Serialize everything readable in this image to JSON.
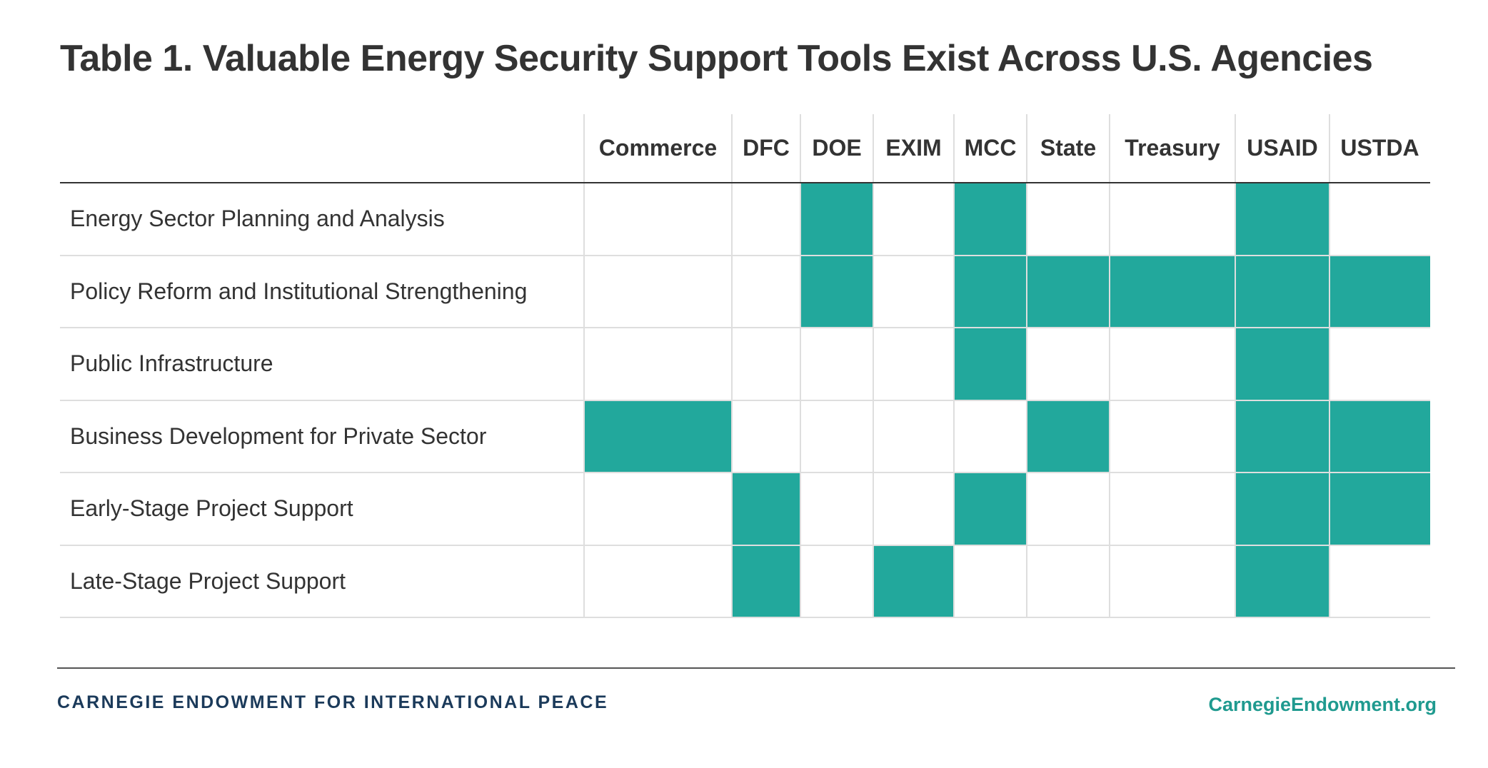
{
  "title": "Table 1. Valuable Energy Security Support Tools Exist Across U.S. Agencies",
  "chart_data": {
    "type": "table",
    "title": "Table 1. Valuable Energy Security Support Tools Exist Across U.S. Agencies",
    "columns": [
      "Commerce",
      "DFC",
      "DOE",
      "EXIM",
      "MCC",
      "State",
      "Treasury",
      "USAID",
      "USTDA"
    ],
    "rows": [
      {
        "label": "Energy Sector Planning and Analysis",
        "values": [
          0,
          0,
          1,
          0,
          1,
          0,
          0,
          1,
          0
        ]
      },
      {
        "label": "Policy Reform and Institutional Strengthening",
        "values": [
          0,
          0,
          1,
          0,
          1,
          1,
          1,
          1,
          1
        ]
      },
      {
        "label": "Public Infrastructure",
        "values": [
          0,
          0,
          0,
          0,
          1,
          0,
          0,
          1,
          0
        ]
      },
      {
        "label": "Business Development for Private Sector",
        "values": [
          1,
          0,
          0,
          0,
          0,
          1,
          0,
          1,
          1
        ]
      },
      {
        "label": "Early-Stage Project Support",
        "values": [
          0,
          1,
          0,
          0,
          1,
          0,
          0,
          1,
          1
        ]
      },
      {
        "label": "Late-Stage Project Support",
        "values": [
          0,
          1,
          0,
          1,
          0,
          0,
          0,
          1,
          0
        ]
      }
    ],
    "fill_color": "#22a89c"
  },
  "footer": {
    "organization": "CARNEGIE ENDOWMENT FOR INTERNATIONAL PEACE",
    "url": "CarnegieEndowment.org"
  }
}
